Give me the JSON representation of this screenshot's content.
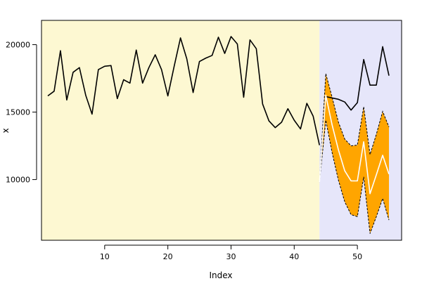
{
  "chart_data": {
    "type": "line",
    "xlabel": "Index",
    "ylabel": "x",
    "xlim": [
      0,
      57
    ],
    "ylim": [
      5500,
      21800
    ],
    "x_ticks": [
      10,
      20,
      30,
      40,
      50
    ],
    "y_ticks": [
      10000,
      15000,
      20000
    ],
    "x_tick_labels": [
      "10",
      "20",
      "30",
      "40",
      "50"
    ],
    "y_tick_labels": [
      "10000",
      "15000",
      "20000"
    ],
    "regions": [
      {
        "from": 0,
        "to": 44,
        "color": "#fdf8d2"
      },
      {
        "from": 44,
        "to": 57,
        "color": "#e6e6fa"
      }
    ],
    "series": [
      {
        "role": "observed",
        "color": "#000000",
        "x": [
          1,
          2,
          3,
          4,
          5,
          6,
          7,
          8,
          9,
          10,
          11,
          12,
          13,
          14,
          15,
          16,
          17,
          18,
          19,
          20,
          21,
          22,
          23,
          24,
          25,
          26,
          27,
          28,
          29,
          30,
          31,
          32,
          33,
          34,
          35,
          36,
          37,
          38,
          39,
          40,
          41,
          42,
          43,
          44
        ],
        "values": [
          16200,
          16550,
          19550,
          15900,
          17950,
          18300,
          16250,
          14850,
          18150,
          18400,
          18450,
          16000,
          17400,
          17150,
          19600,
          17150,
          18300,
          19250,
          18150,
          16200,
          18400,
          20500,
          18950,
          16450,
          18750,
          19000,
          19200,
          20550,
          19350,
          20600,
          20050,
          16100,
          20350,
          19700,
          15600,
          14350,
          13850,
          14250,
          15250,
          14400,
          13750,
          15650,
          14700,
          12550
        ]
      },
      {
        "role": "actual",
        "color": "#000000",
        "x": [
          45,
          46,
          47,
          48,
          49,
          50,
          51,
          52,
          53,
          54,
          55
        ],
        "values": [
          16150,
          16050,
          15950,
          15750,
          15150,
          15700,
          18900,
          17000,
          17000,
          19850,
          17700
        ]
      },
      {
        "role": "forecast",
        "color": "#ffffff",
        "x": [
          44,
          45,
          46,
          47,
          48,
          49,
          50,
          51,
          52,
          53,
          54,
          55
        ],
        "values": [
          9800,
          16250,
          14050,
          12200,
          10650,
          9900,
          9900,
          12800,
          8950,
          10350,
          11800,
          10400
        ]
      }
    ],
    "band": {
      "color": "#ffa500",
      "x": [
        44,
        45,
        46,
        47,
        48,
        49,
        50,
        51,
        52,
        53,
        54,
        55
      ],
      "upper": [
        9800,
        17850,
        16100,
        14250,
        13000,
        12500,
        12550,
        15400,
        11850,
        13350,
        15050,
        13900
      ],
      "lower": [
        9800,
        14400,
        12000,
        9950,
        8350,
        7400,
        7250,
        10200,
        6000,
        7250,
        8600,
        7000
      ]
    }
  }
}
